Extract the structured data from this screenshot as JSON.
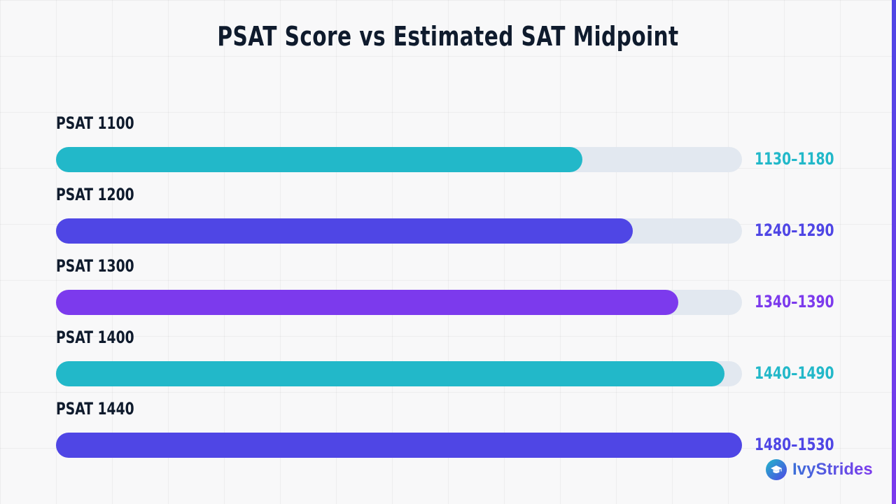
{
  "chart_data": {
    "type": "bar",
    "orientation": "horizontal",
    "title": "PSAT Score vs Estimated SAT Midpoint",
    "categories": [
      "PSAT 1100",
      "PSAT 1200",
      "PSAT 1300",
      "PSAT 1400",
      "PSAT 1440"
    ],
    "range_labels": [
      "1130–1180",
      "1240–1290",
      "1340–1390",
      "1440–1490",
      "1480–1530"
    ],
    "values": [
      1155,
      1265,
      1365,
      1465,
      1505
    ],
    "fill_fraction": [
      0.767,
      0.841,
      0.907,
      0.974,
      1.0
    ],
    "colors": [
      "#22b8c9",
      "#4f46e5",
      "#7c3aed",
      "#22b8c9",
      "#4f46e5"
    ],
    "track_color": "#e2e8f0",
    "grid": true,
    "legend": "none"
  },
  "branding": {
    "logo_text": "IvyStrides",
    "logo_icon": "graduation-cap-icon"
  },
  "colors": {
    "title": "#0f1b2d",
    "accent_teal": "#22b8c9",
    "accent_indigo": "#4f46e5",
    "accent_violet": "#7c3aed"
  }
}
